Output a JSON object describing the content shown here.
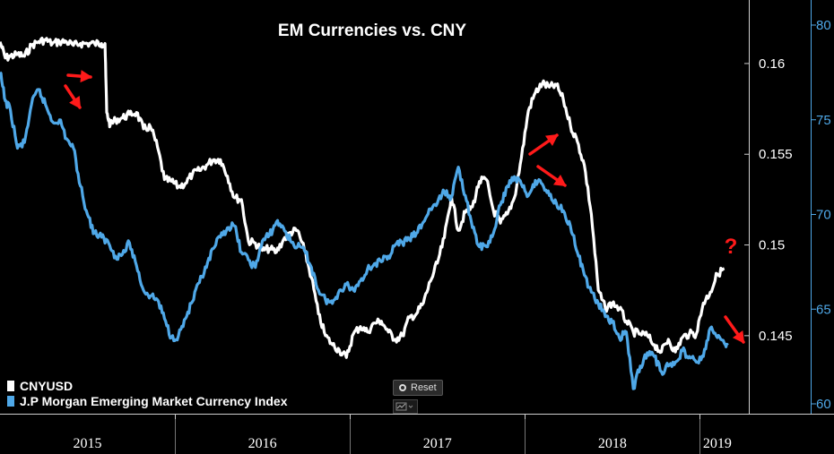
{
  "chart_data": {
    "type": "line",
    "title": "EM Currencies vs. CNY",
    "x_axis": {
      "ticks": [
        "2015",
        "2016",
        "2017",
        "2018",
        "2019"
      ],
      "range": [
        "2015-01",
        "2019-03"
      ]
    },
    "y_left": {
      "ticks": [
        0.145,
        0.15,
        0.155,
        0.16
      ],
      "range": [
        0.1407,
        0.1635
      ]
    },
    "y_right": {
      "ticks": [
        60,
        65,
        70,
        75,
        80
      ],
      "range": [
        60,
        80.7
      ]
    },
    "legend": {
      "placement": "bottom-left"
    },
    "annotations": {
      "question_mark": "?",
      "arrow_color": "#ff1a1a"
    },
    "series": [
      {
        "name": "CNYUSD",
        "axis": "left",
        "color": "#ffffff",
        "x": [
          2015.0,
          2015.03,
          2015.06,
          2015.1,
          2015.14,
          2015.18,
          2015.22,
          2015.26,
          2015.3,
          2015.34,
          2015.38,
          2015.42,
          2015.46,
          2015.5,
          2015.54,
          2015.58,
          2015.6,
          2015.61,
          2015.63,
          2015.66,
          2015.7,
          2015.74,
          2015.78,
          2015.82,
          2015.86,
          2015.9,
          2015.94,
          2015.98,
          2016.02,
          2016.06,
          2016.1,
          2016.14,
          2016.18,
          2016.22,
          2016.26,
          2016.3,
          2016.34,
          2016.38,
          2016.42,
          2016.46,
          2016.5,
          2016.54,
          2016.58,
          2016.62,
          2016.66,
          2016.7,
          2016.74,
          2016.78,
          2016.82,
          2016.86,
          2016.9,
          2016.94,
          2016.98,
          2017.02,
          2017.06,
          2017.1,
          2017.14,
          2017.18,
          2017.22,
          2017.26,
          2017.3,
          2017.34,
          2017.38,
          2017.42,
          2017.46,
          2017.5,
          2017.54,
          2017.58,
          2017.62,
          2017.66,
          2017.7,
          2017.74,
          2017.78,
          2017.82,
          2017.86,
          2017.9,
          2017.94,
          2017.98,
          2018.02,
          2018.06,
          2018.1,
          2018.14,
          2018.18,
          2018.22,
          2018.26,
          2018.3,
          2018.34,
          2018.38,
          2018.42,
          2018.46,
          2018.5,
          2018.54,
          2018.58,
          2018.62,
          2018.66,
          2018.7,
          2018.74,
          2018.78,
          2018.82,
          2018.86,
          2018.9,
          2018.94,
          2018.98,
          2019.02,
          2019.06,
          2019.1,
          2019.14
        ],
        "y": [
          0.1612,
          0.1603,
          0.1604,
          0.1605,
          0.1604,
          0.161,
          0.1612,
          0.1613,
          0.1611,
          0.1612,
          0.1612,
          0.161,
          0.1611,
          0.1611,
          0.1611,
          0.1611,
          0.1611,
          0.1573,
          0.1566,
          0.1569,
          0.157,
          0.1572,
          0.1573,
          0.1564,
          0.1565,
          0.1554,
          0.1536,
          0.1535,
          0.1532,
          0.1534,
          0.1539,
          0.1541,
          0.1544,
          0.1547,
          0.1547,
          0.1538,
          0.1526,
          0.1525,
          0.1502,
          0.1501,
          0.1497,
          0.1498,
          0.1496,
          0.1503,
          0.1507,
          0.1508,
          0.1497,
          0.1482,
          0.1462,
          0.145,
          0.1445,
          0.1442,
          0.1438,
          0.1451,
          0.1455,
          0.1452,
          0.1457,
          0.1458,
          0.1452,
          0.1448,
          0.145,
          0.146,
          0.1462,
          0.1468,
          0.148,
          0.149,
          0.1504,
          0.1527,
          0.1508,
          0.1518,
          0.1521,
          0.1535,
          0.1536,
          0.1519,
          0.1512,
          0.1517,
          0.1526,
          0.1548,
          0.1574,
          0.1584,
          0.1589,
          0.1587,
          0.1588,
          0.158,
          0.1566,
          0.1557,
          0.1544,
          0.1517,
          0.1475,
          0.1465,
          0.1468,
          0.1465,
          0.1458,
          0.1452,
          0.1451,
          0.145,
          0.1445,
          0.1441,
          0.1448,
          0.1441,
          0.1449,
          0.1451,
          0.1451,
          0.1468,
          0.1474,
          0.1484,
          0.1487
        ]
      },
      {
        "name": "J.P Morgan Emerging Market Currency Index",
        "axis": "right",
        "color": "#4fa8e8",
        "x": [
          2015.0,
          2015.03,
          2015.06,
          2015.1,
          2015.14,
          2015.18,
          2015.22,
          2015.26,
          2015.3,
          2015.34,
          2015.38,
          2015.42,
          2015.46,
          2015.5,
          2015.54,
          2015.58,
          2015.62,
          2015.66,
          2015.7,
          2015.74,
          2015.78,
          2015.82,
          2015.86,
          2015.9,
          2015.94,
          2015.98,
          2016.02,
          2016.06,
          2016.1,
          2016.14,
          2016.18,
          2016.22,
          2016.26,
          2016.3,
          2016.34,
          2016.38,
          2016.42,
          2016.46,
          2016.5,
          2016.54,
          2016.58,
          2016.62,
          2016.66,
          2016.7,
          2016.74,
          2016.78,
          2016.82,
          2016.86,
          2016.9,
          2016.94,
          2016.98,
          2017.02,
          2017.06,
          2017.1,
          2017.14,
          2017.18,
          2017.22,
          2017.26,
          2017.3,
          2017.34,
          2017.38,
          2017.42,
          2017.46,
          2017.5,
          2017.54,
          2017.58,
          2017.62,
          2017.66,
          2017.7,
          2017.74,
          2017.78,
          2017.82,
          2017.86,
          2017.9,
          2017.94,
          2017.98,
          2018.02,
          2018.06,
          2018.1,
          2018.14,
          2018.18,
          2018.22,
          2018.26,
          2018.3,
          2018.34,
          2018.38,
          2018.42,
          2018.46,
          2018.5,
          2018.54,
          2018.58,
          2018.62,
          2018.66,
          2018.7,
          2018.74,
          2018.78,
          2018.82,
          2018.86,
          2018.9,
          2018.94,
          2018.98,
          2019.02,
          2019.06,
          2019.1,
          2019.14,
          2019.16
        ],
        "y": [
          77.5,
          76.0,
          75.5,
          73.5,
          73.8,
          75.8,
          76.6,
          75.8,
          74.9,
          75.0,
          74.0,
          73.5,
          71.5,
          70.0,
          69.0,
          68.8,
          68.5,
          67.8,
          67.9,
          68.5,
          67.3,
          66.0,
          65.7,
          65.5,
          64.5,
          63.5,
          63.6,
          64.5,
          65.4,
          66.4,
          67.2,
          68.2,
          68.8,
          69.3,
          69.4,
          68.0,
          67.6,
          67.2,
          68.6,
          68.9,
          69.6,
          69.3,
          68.6,
          68.3,
          68.1,
          67.2,
          66.0,
          65.5,
          65.3,
          66.0,
          66.3,
          66.0,
          66.5,
          67.1,
          67.4,
          67.5,
          67.8,
          68.4,
          68.5,
          68.7,
          69.0,
          69.6,
          70.3,
          70.6,
          71.2,
          70.9,
          72.5,
          71.0,
          69.3,
          68.3,
          68.3,
          69.0,
          70.5,
          71.5,
          72.0,
          71.6,
          71.0,
          71.8,
          71.6,
          71.0,
          70.6,
          70.2,
          69.4,
          68.0,
          66.8,
          65.9,
          65.3,
          64.6,
          64.3,
          63.5,
          63.8,
          60.8,
          62.0,
          62.7,
          62.5,
          61.7,
          62.0,
          62.2,
          62.8,
          62.5,
          62.2,
          62.5,
          64.0,
          63.5,
          63.2,
          63.1
        ]
      }
    ]
  },
  "legend": {
    "item1": "CNYUSD",
    "item2": "J.P Morgan Emerging Market Currency Index"
  },
  "controls": {
    "reset_label": "Reset"
  }
}
